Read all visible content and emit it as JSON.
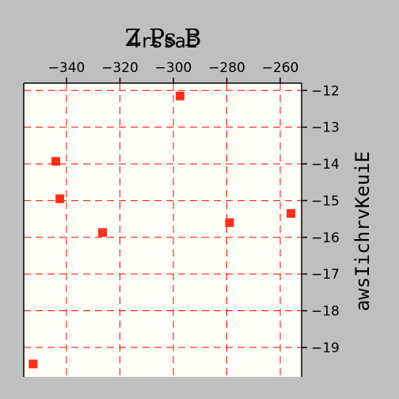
{
  "chart_data": {
    "type": "scatter",
    "title": "Z Ps B",
    "subtitle": "4rssaE",
    "xlabel": "",
    "ylabel": "awsIichrvKeuiE",
    "x_axis_position": "top",
    "y_axis_position": "right",
    "xlim": [
      -356,
      -252
    ],
    "ylim": [
      -19.8,
      -11.8
    ],
    "x_ticks": [
      -340,
      -320,
      -300,
      -280,
      -260
    ],
    "y_ticks": [
      -12,
      -13,
      -14,
      -15,
      -16,
      -17,
      -18,
      -19
    ],
    "x_tick_labels": [
      "−340",
      "−320",
      "−300",
      "−280",
      "−260"
    ],
    "y_tick_labels": [
      "−12",
      "−13",
      "−14",
      "−15",
      "−16",
      "−17",
      "−18",
      "−19"
    ],
    "grid": true,
    "marker": "square",
    "colors": {
      "marker": "#ff3018",
      "grid": "#ff0000",
      "plot_bg": "#fffff8",
      "page_bg": "#bfbfbf"
    },
    "points": [
      {
        "x": -352.5,
        "y": -19.45
      },
      {
        "x": -344.0,
        "y": -13.93
      },
      {
        "x": -342.5,
        "y": -14.95
      },
      {
        "x": -326.5,
        "y": -15.87
      },
      {
        "x": -297.5,
        "y": -12.15
      },
      {
        "x": -279.0,
        "y": -15.6
      },
      {
        "x": -256.0,
        "y": -15.35
      }
    ]
  }
}
